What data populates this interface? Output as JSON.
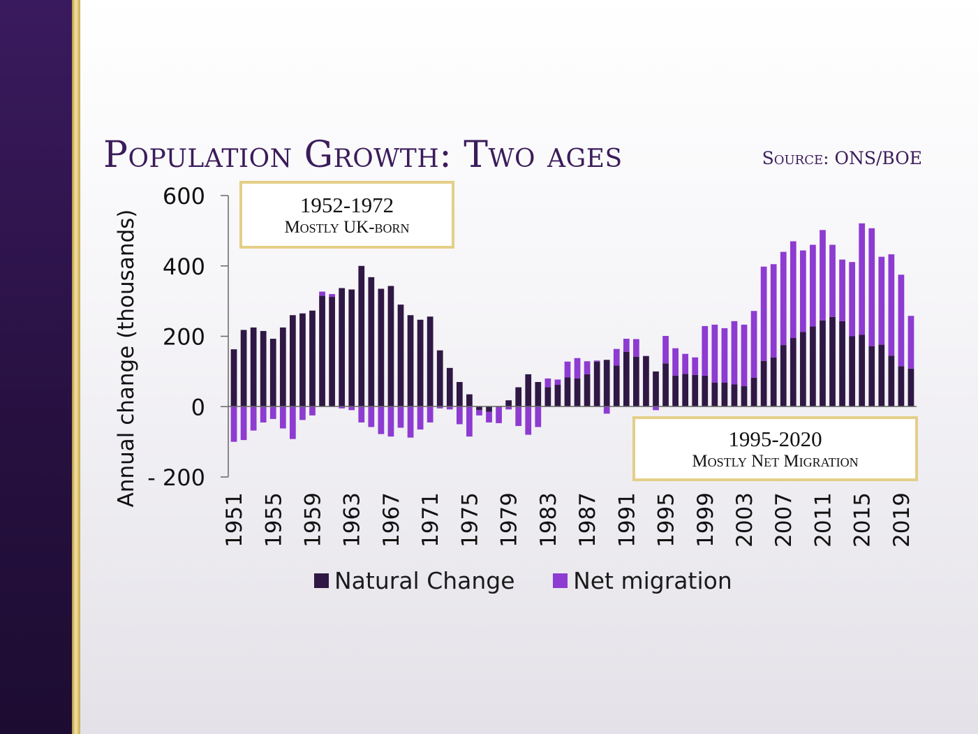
{
  "slide": {
    "title": "Population Growth: Two ages",
    "source": "Source: ONS/BOE"
  },
  "callouts": [
    {
      "years": "1952-1972",
      "text": "Mostly UK-born"
    },
    {
      "years": "1995-2020",
      "text": "Mostly Net Migration"
    }
  ],
  "colors": {
    "natural": "#2f1844",
    "migration": "#8d3bd1",
    "left_band": "#2a1346",
    "gold": "#d9bf6e"
  },
  "chart_data": {
    "type": "bar",
    "stacked": true,
    "title": "",
    "xlabel": "",
    "ylabel": "Annual change (thousands)",
    "ylim": [
      -200,
      600
    ],
    "yticks": [
      600,
      400,
      200,
      0,
      -200
    ],
    "ytick_labels": [
      "600",
      "400",
      "200",
      "0",
      "- 200"
    ],
    "xtick_labels": [
      "1951",
      "1955",
      "1959",
      "1963",
      "1967",
      "1971",
      "1975",
      "1979",
      "1983",
      "1987",
      "1991",
      "1995",
      "1999",
      "2003",
      "2007",
      "2011",
      "2015",
      "2019"
    ],
    "grid": false,
    "legend": "bottom",
    "categories": [
      1951,
      1952,
      1953,
      1954,
      1955,
      1956,
      1957,
      1958,
      1959,
      1960,
      1961,
      1962,
      1963,
      1964,
      1965,
      1966,
      1967,
      1968,
      1969,
      1970,
      1971,
      1972,
      1973,
      1974,
      1975,
      1976,
      1977,
      1978,
      1979,
      1980,
      1981,
      1982,
      1983,
      1984,
      1985,
      1986,
      1987,
      1988,
      1989,
      1990,
      1991,
      1992,
      1993,
      1994,
      1995,
      1996,
      1997,
      1998,
      1999,
      2000,
      2001,
      2002,
      2003,
      2004,
      2005,
      2006,
      2007,
      2008,
      2009,
      2010,
      2011,
      2012,
      2013,
      2014,
      2015,
      2016,
      2017,
      2018,
      2019,
      2020
    ],
    "series": [
      {
        "name": "Natural Change",
        "values": [
          163,
          218,
          225,
          215,
          193,
          225,
          260,
          265,
          273,
          315,
          312,
          337,
          333,
          400,
          368,
          335,
          343,
          290,
          260,
          247,
          256,
          160,
          110,
          70,
          35,
          -10,
          -15,
          -2,
          18,
          55,
          92,
          70,
          55,
          62,
          83,
          80,
          92,
          128,
          133,
          117,
          156,
          142,
          144,
          100,
          123,
          88,
          93,
          90,
          88,
          68,
          68,
          63,
          58,
          82,
          130,
          140,
          175,
          195,
          212,
          228,
          245,
          255,
          243,
          200,
          204,
          172,
          176,
          145,
          115,
          108
        ]
      },
      {
        "name": "Net migration",
        "values": [
          -100,
          -95,
          -68,
          -45,
          -35,
          -62,
          -92,
          -38,
          -25,
          12,
          8,
          -5,
          -10,
          -45,
          -58,
          -78,
          -85,
          -60,
          -88,
          -65,
          -45,
          -5,
          -8,
          -50,
          -85,
          -15,
          -30,
          -45,
          -8,
          -55,
          -80,
          -58,
          25,
          15,
          45,
          58,
          37,
          3,
          -20,
          47,
          37,
          50,
          0,
          -10,
          78,
          78,
          57,
          50,
          141,
          165,
          155,
          180,
          175,
          190,
          268,
          265,
          265,
          275,
          232,
          232,
          257,
          205,
          175,
          211,
          317,
          335,
          250,
          288,
          260,
          150
        ]
      }
    ]
  },
  "legend_items": [
    {
      "label": "Natural Change"
    },
    {
      "label": "Net migration"
    }
  ]
}
